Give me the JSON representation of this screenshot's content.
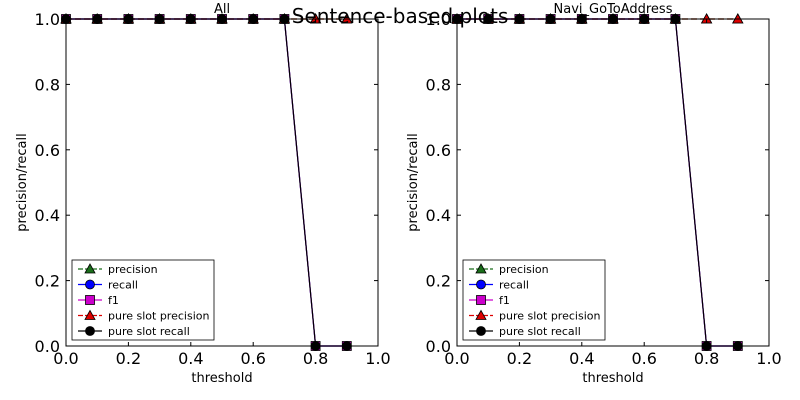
{
  "figure": {
    "suptitle": "Sentence-based plots"
  },
  "chart_data": [
    {
      "type": "line",
      "title": "All",
      "xlabel": "threshold",
      "ylabel": "precision/recall",
      "xlim": [
        0.0,
        1.0
      ],
      "ylim": [
        0.0,
        1.0
      ],
      "xticks": [
        "0.0",
        "0.2",
        "0.4",
        "0.6",
        "0.8",
        "1.0"
      ],
      "yticks": [
        "0.0",
        "0.2",
        "0.4",
        "0.6",
        "0.8",
        "1.0"
      ],
      "legend_position": "lower-left",
      "x": [
        0.0,
        0.1,
        0.2,
        0.3,
        0.4,
        0.5,
        0.6,
        0.7,
        0.8,
        0.9
      ],
      "series": [
        {
          "name": "precision",
          "color": "#1a6e1a",
          "marker": "triangle",
          "dashed": true,
          "values": [
            1.0,
            1.0,
            1.0,
            1.0,
            1.0,
            1.0,
            1.0,
            1.0,
            1.0,
            1.0
          ]
        },
        {
          "name": "recall",
          "color": "#0000ff",
          "marker": "circle",
          "dashed": false,
          "values": [
            1.0,
            1.0,
            1.0,
            1.0,
            1.0,
            1.0,
            1.0,
            1.0,
            0.0,
            0.0
          ]
        },
        {
          "name": "f1",
          "color": "#cc00cc",
          "marker": "square",
          "dashed": false,
          "values": [
            1.0,
            1.0,
            1.0,
            1.0,
            1.0,
            1.0,
            1.0,
            1.0,
            0.0,
            0.0
          ]
        },
        {
          "name": "pure slot precision",
          "color": "#dd0000",
          "marker": "triangle",
          "dashed": true,
          "values": [
            1.0,
            1.0,
            1.0,
            1.0,
            1.0,
            1.0,
            1.0,
            1.0,
            1.0,
            1.0
          ]
        },
        {
          "name": "pure slot recall",
          "color": "#000000",
          "marker": "circle",
          "dashed": false,
          "values": [
            1.0,
            1.0,
            1.0,
            1.0,
            1.0,
            1.0,
            1.0,
            1.0,
            0.0,
            0.0
          ]
        }
      ]
    },
    {
      "type": "line",
      "title": "Navi_GoToAddress",
      "xlabel": "threshold",
      "ylabel": "precision/recall",
      "xlim": [
        0.0,
        1.0
      ],
      "ylim": [
        0.0,
        1.0
      ],
      "xticks": [
        "0.0",
        "0.2",
        "0.4",
        "0.6",
        "0.8",
        "1.0"
      ],
      "yticks": [
        "0.0",
        "0.2",
        "0.4",
        "0.6",
        "0.8",
        "1.0"
      ],
      "legend_position": "lower-left",
      "x": [
        0.0,
        0.1,
        0.2,
        0.3,
        0.4,
        0.5,
        0.6,
        0.7,
        0.8,
        0.9
      ],
      "series": [
        {
          "name": "precision",
          "color": "#1a6e1a",
          "marker": "triangle",
          "dashed": true,
          "values": [
            1.0,
            1.0,
            1.0,
            1.0,
            1.0,
            1.0,
            1.0,
            1.0,
            1.0,
            1.0
          ]
        },
        {
          "name": "recall",
          "color": "#0000ff",
          "marker": "circle",
          "dashed": false,
          "values": [
            1.0,
            1.0,
            1.0,
            1.0,
            1.0,
            1.0,
            1.0,
            1.0,
            0.0,
            0.0
          ]
        },
        {
          "name": "f1",
          "color": "#cc00cc",
          "marker": "square",
          "dashed": false,
          "values": [
            1.0,
            1.0,
            1.0,
            1.0,
            1.0,
            1.0,
            1.0,
            1.0,
            0.0,
            0.0
          ]
        },
        {
          "name": "pure slot precision",
          "color": "#dd0000",
          "marker": "triangle",
          "dashed": true,
          "values": [
            1.0,
            1.0,
            1.0,
            1.0,
            1.0,
            1.0,
            1.0,
            1.0,
            1.0,
            1.0
          ]
        },
        {
          "name": "pure slot recall",
          "color": "#000000",
          "marker": "circle",
          "dashed": false,
          "values": [
            1.0,
            1.0,
            1.0,
            1.0,
            1.0,
            1.0,
            1.0,
            1.0,
            0.0,
            0.0
          ]
        }
      ]
    }
  ]
}
